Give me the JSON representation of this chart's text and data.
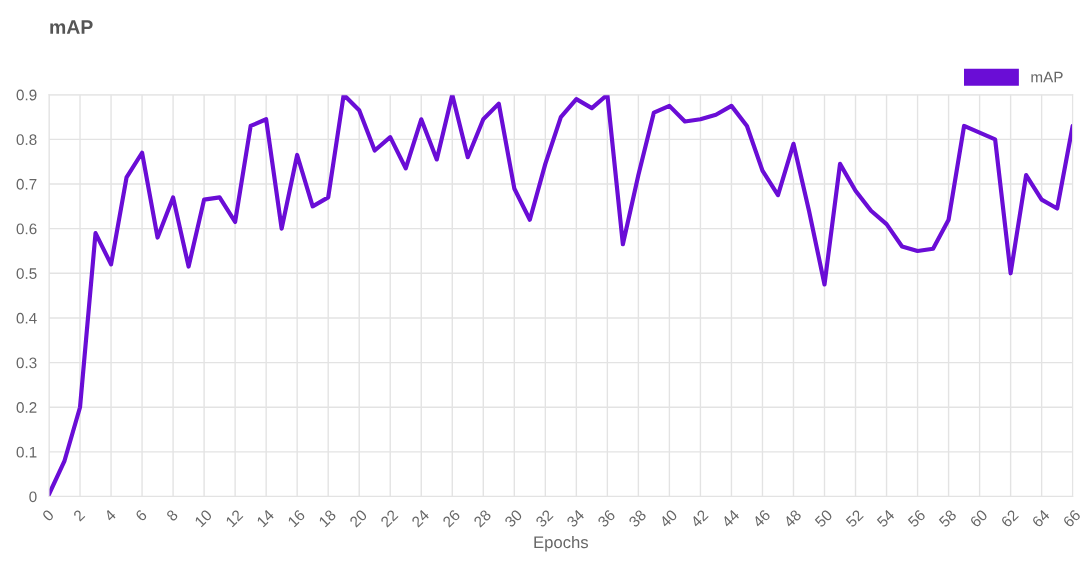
{
  "chart_data": {
    "type": "line",
    "title": "mAP",
    "xlabel": "Epochs",
    "x": [
      0,
      1,
      2,
      3,
      4,
      5,
      6,
      7,
      8,
      9,
      10,
      11,
      12,
      13,
      14,
      15,
      16,
      17,
      18,
      19,
      20,
      21,
      22,
      23,
      24,
      25,
      26,
      27,
      28,
      29,
      30,
      31,
      32,
      33,
      34,
      35,
      36,
      37,
      38,
      39,
      40,
      41,
      42,
      43,
      44,
      45,
      46,
      47,
      48,
      49,
      50,
      51,
      52,
      53,
      54,
      55,
      56,
      57,
      58,
      59,
      60,
      61,
      62,
      63,
      64,
      65,
      66
    ],
    "series": [
      {
        "name": "mAP",
        "color": "#6a0dd6",
        "values": [
          0.005,
          0.08,
          0.2,
          0.59,
          0.52,
          0.715,
          0.77,
          0.58,
          0.67,
          0.515,
          0.665,
          0.67,
          0.615,
          0.83,
          0.845,
          0.6,
          0.765,
          0.65,
          0.67,
          0.9,
          0.865,
          0.775,
          0.805,
          0.735,
          0.845,
          0.755,
          0.9,
          0.76,
          0.845,
          0.88,
          0.69,
          0.62,
          0.745,
          0.85,
          0.89,
          0.87,
          0.9,
          0.565,
          0.72,
          0.86,
          0.875,
          0.84,
          0.845,
          0.855,
          0.875,
          0.83,
          0.73,
          0.675,
          0.79,
          0.64,
          0.475,
          0.745,
          0.685,
          0.64,
          0.61,
          0.56,
          0.55,
          0.555,
          0.62,
          0.83,
          0.815,
          0.8,
          0.5,
          0.72,
          0.665,
          0.645,
          0.83
        ]
      }
    ],
    "xlim": [
      0,
      66
    ],
    "xticks": [
      0,
      2,
      4,
      6,
      8,
      10,
      12,
      14,
      16,
      18,
      20,
      22,
      24,
      26,
      28,
      30,
      32,
      34,
      36,
      38,
      40,
      42,
      44,
      46,
      48,
      50,
      52,
      54,
      56,
      58,
      60,
      62,
      64,
      66
    ],
    "ylim": [
      0,
      0.9
    ],
    "yticks": [
      0,
      0.1,
      0.2,
      0.3,
      0.4,
      0.5,
      0.6,
      0.7,
      0.8,
      0.9
    ],
    "grid": true,
    "legend": "top right",
    "marker": "none",
    "line_style": "solid"
  }
}
